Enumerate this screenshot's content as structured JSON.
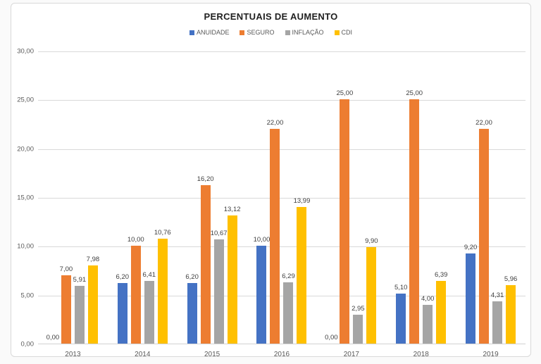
{
  "chart_data": {
    "type": "bar",
    "title": "PERCENTUAIS DE AUMENTO",
    "categories": [
      "2013",
      "2014",
      "2015",
      "2016",
      "2017",
      "2018",
      "2019"
    ],
    "series": [
      {
        "name": "ANUIDADE",
        "color": "#4472C4",
        "values": [
          0.0,
          6.2,
          6.2,
          10.0,
          0.0,
          5.1,
          9.2
        ],
        "labels": [
          "0,00",
          "6,20",
          "6,20",
          "10,00",
          "0,00",
          "5,10",
          "9,20"
        ]
      },
      {
        "name": "SEGURO",
        "color": "#ED7D31",
        "values": [
          7.0,
          10.0,
          16.2,
          22.0,
          25.0,
          25.0,
          22.0
        ],
        "labels": [
          "7,00",
          "10,00",
          "16,20",
          "22,00",
          "25,00",
          "25,00",
          "22,00"
        ]
      },
      {
        "name": "INFLAÇÃO",
        "color": "#A5A5A5",
        "values": [
          5.91,
          6.41,
          10.67,
          6.29,
          2.95,
          4.0,
          4.31
        ],
        "labels": [
          "5,91",
          "6,41",
          "10,67",
          "6,29",
          "2,95",
          "4,00",
          "4,31"
        ]
      },
      {
        "name": "CDI",
        "color": "#FFC000",
        "values": [
          7.98,
          10.76,
          13.12,
          13.99,
          9.9,
          6.39,
          5.96
        ],
        "labels": [
          "7,98",
          "10,76",
          "13,12",
          "13,99",
          "9,90",
          "6,39",
          "5,96"
        ]
      }
    ],
    "y_axis": {
      "min": 0,
      "max": 30,
      "step": 5,
      "tick_labels": [
        "0,00",
        "5,00",
        "10,00",
        "15,00",
        "20,00",
        "25,00",
        "30,00"
      ]
    },
    "grid": true,
    "legend_position": "top",
    "data_labels": true,
    "colors": {
      "gridline": "#d9d9d9",
      "axis_text": "#595959",
      "data_label_text": "#404040",
      "title_text": "#1f1f1f"
    }
  }
}
